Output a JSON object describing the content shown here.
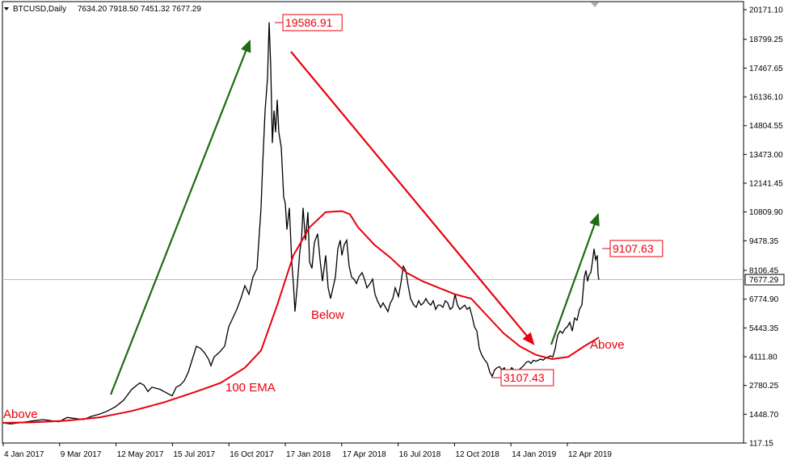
{
  "header": {
    "symbol": "BTCUSD,Daily",
    "ohlc": "7634.20 7918.50 7451.32 7677.29"
  },
  "chart_data": {
    "type": "line",
    "y_ticks": [
      "20171.10",
      "18799.25",
      "17467.65",
      "16136.10",
      "14804.55",
      "13473.00",
      "12141.45",
      "10809.90",
      "9478.35",
      "8106.45",
      "6774.90",
      "5443.35",
      "4111.80",
      "2780.25",
      "1448.70",
      "117.15"
    ],
    "x_ticks": [
      "4 Jan 2017",
      "9 Mar 2017",
      "12 May 2017",
      "15 Jul 2017",
      "16 Oct 2017",
      "17 Jan 2018",
      "17 Apr 2018",
      "16 Jul 2018",
      "12 Oct 2018",
      "14 Jan 2019",
      "12 Apr 2019"
    ],
    "current_price": "7677.29",
    "price_labels": [
      {
        "text": "19586.91",
        "value": 19586.91
      },
      {
        "text": "3107.43",
        "value": 3107.43
      },
      {
        "text": "9107.63",
        "value": 9107.63
      }
    ],
    "annotations": {
      "above_left": "Above",
      "ema": "100 EMA",
      "below": "Below",
      "above_right": "Above"
    },
    "colors": {
      "price": "#000000",
      "ema": "#e8000b",
      "up_arrow": "#1f6b13",
      "down_arrow": "#e8000b",
      "label_text": "#e8000b"
    },
    "price_path": [
      [
        0,
        1050
      ],
      [
        10,
        1000
      ],
      [
        20,
        1050
      ],
      [
        30,
        1100
      ],
      [
        40,
        1150
      ],
      [
        50,
        1200
      ],
      [
        60,
        1150
      ],
      [
        70,
        1100
      ],
      [
        75,
        1200
      ],
      [
        80,
        1300
      ],
      [
        90,
        1250
      ],
      [
        100,
        1200
      ],
      [
        110,
        1350
      ],
      [
        120,
        1450
      ],
      [
        130,
        1600
      ],
      [
        140,
        1800
      ],
      [
        150,
        2100
      ],
      [
        160,
        2600
      ],
      [
        170,
        2900
      ],
      [
        175,
        2800
      ],
      [
        180,
        2500
      ],
      [
        185,
        2700
      ],
      [
        195,
        2600
      ],
      [
        200,
        2500
      ],
      [
        205,
        2400
      ],
      [
        210,
        2300
      ],
      [
        215,
        2700
      ],
      [
        220,
        2800
      ],
      [
        225,
        3000
      ],
      [
        230,
        3400
      ],
      [
        235,
        4000
      ],
      [
        240,
        4600
      ],
      [
        245,
        4500
      ],
      [
        250,
        4300
      ],
      [
        255,
        4000
      ],
      [
        258,
        3700
      ],
      [
        262,
        4100
      ],
      [
        268,
        4300
      ],
      [
        275,
        4600
      ],
      [
        280,
        5500
      ],
      [
        285,
        5900
      ],
      [
        290,
        6300
      ],
      [
        295,
        6800
      ],
      [
        300,
        7400
      ],
      [
        305,
        7000
      ],
      [
        310,
        7800
      ],
      [
        315,
        8200
      ],
      [
        320,
        11000
      ],
      [
        322,
        13000
      ],
      [
        325,
        15500
      ],
      [
        328,
        17000
      ],
      [
        330,
        19586
      ],
      [
        332,
        17500
      ],
      [
        334,
        14000
      ],
      [
        336,
        15500
      ],
      [
        338,
        14500
      ],
      [
        340,
        16000
      ],
      [
        342,
        14500
      ],
      [
        345,
        13800
      ],
      [
        348,
        11500
      ],
      [
        350,
        11200
      ],
      [
        352,
        10000
      ],
      [
        355,
        11000
      ],
      [
        358,
        8500
      ],
      [
        360,
        7500
      ],
      [
        362,
        6200
      ],
      [
        365,
        7500
      ],
      [
        368,
        9000
      ],
      [
        370,
        9500
      ],
      [
        372,
        11000
      ],
      [
        375,
        9500
      ],
      [
        378,
        10800
      ],
      [
        380,
        8500
      ],
      [
        383,
        8200
      ],
      [
        386,
        9400
      ],
      [
        390,
        9800
      ],
      [
        393,
        8600
      ],
      [
        396,
        7600
      ],
      [
        400,
        8800
      ],
      [
        403,
        7300
      ],
      [
        406,
        6800
      ],
      [
        409,
        7300
      ],
      [
        412,
        7800
      ],
      [
        415,
        9100
      ],
      [
        418,
        9500
      ],
      [
        420,
        8800
      ],
      [
        423,
        9300
      ],
      [
        426,
        9500
      ],
      [
        429,
        8300
      ],
      [
        432,
        7800
      ],
      [
        435,
        7700
      ],
      [
        438,
        7500
      ],
      [
        441,
        7800
      ],
      [
        445,
        8000
      ],
      [
        448,
        7700
      ],
      [
        451,
        7300
      ],
      [
        455,
        7500
      ],
      [
        458,
        7700
      ],
      [
        461,
        7000
      ],
      [
        464,
        6700
      ],
      [
        468,
        6400
      ],
      [
        471,
        6600
      ],
      [
        474,
        6400
      ],
      [
        477,
        6200
      ],
      [
        480,
        6600
      ],
      [
        483,
        6800
      ],
      [
        486,
        7300
      ],
      [
        490,
        6900
      ],
      [
        493,
        7500
      ],
      [
        496,
        8300
      ],
      [
        499,
        8100
      ],
      [
        502,
        7400
      ],
      [
        505,
        6800
      ],
      [
        509,
        6500
      ],
      [
        512,
        6400
      ],
      [
        515,
        6700
      ],
      [
        518,
        6500
      ],
      [
        521,
        6600
      ],
      [
        524,
        6800
      ],
      [
        527,
        6600
      ],
      [
        530,
        6500
      ],
      [
        533,
        6700
      ],
      [
        536,
        6300
      ],
      [
        539,
        6500
      ],
      [
        542,
        6500
      ],
      [
        545,
        6400
      ],
      [
        548,
        6700
      ],
      [
        551,
        6600
      ],
      [
        554,
        6300
      ],
      [
        557,
        6400
      ],
      [
        560,
        7000
      ],
      [
        563,
        6500
      ],
      [
        566,
        6300
      ],
      [
        569,
        6400
      ],
      [
        572,
        6500
      ],
      [
        575,
        6300
      ],
      [
        578,
        6400
      ],
      [
        581,
        6000
      ],
      [
        584,
        5500
      ],
      [
        587,
        5300
      ],
      [
        590,
        4500
      ],
      [
        593,
        4200
      ],
      [
        596,
        4000
      ],
      [
        600,
        3800
      ],
      [
        603,
        3400
      ],
      [
        606,
        3200
      ],
      [
        609,
        3500
      ],
      [
        612,
        3600
      ],
      [
        615,
        3650
      ],
      [
        618,
        3500
      ],
      [
        621,
        3600
      ],
      [
        624,
        3300
      ],
      [
        627,
        3400
      ],
      [
        630,
        3600
      ],
      [
        633,
        3500
      ],
      [
        636,
        3450
      ],
      [
        639,
        3500
      ],
      [
        642,
        3600
      ],
      [
        645,
        3700
      ],
      [
        648,
        3850
      ],
      [
        651,
        3900
      ],
      [
        654,
        3800
      ],
      [
        657,
        3950
      ],
      [
        660,
        3900
      ],
      [
        663,
        3950
      ],
      [
        666,
        4000
      ],
      [
        669,
        3950
      ],
      [
        672,
        4050
      ],
      [
        675,
        4100
      ],
      [
        678,
        4150
      ],
      [
        681,
        4100
      ],
      [
        684,
        4500
      ],
      [
        687,
        5100
      ],
      [
        690,
        5300
      ],
      [
        693,
        5200
      ],
      [
        696,
        5400
      ],
      [
        699,
        5500
      ],
      [
        702,
        5700
      ],
      [
        705,
        5300
      ],
      [
        708,
        5900
      ],
      [
        711,
        5800
      ],
      [
        714,
        6300
      ],
      [
        717,
        6500
      ],
      [
        720,
        7800
      ],
      [
        722,
        8100
      ],
      [
        724,
        7600
      ],
      [
        726,
        7900
      ],
      [
        728,
        8000
      ],
      [
        730,
        8500
      ],
      [
        732,
        9107
      ],
      [
        734,
        8600
      ],
      [
        736,
        8800
      ],
      [
        737,
        7900
      ],
      [
        738,
        7677
      ]
    ],
    "ema_path": [
      [
        0,
        1050
      ],
      [
        40,
        1080
      ],
      [
        80,
        1150
      ],
      [
        120,
        1300
      ],
      [
        160,
        1600
      ],
      [
        200,
        2000
      ],
      [
        240,
        2500
      ],
      [
        270,
        2900
      ],
      [
        300,
        3600
      ],
      [
        320,
        4400
      ],
      [
        340,
        6500
      ],
      [
        360,
        8800
      ],
      [
        380,
        10100
      ],
      [
        400,
        10800
      ],
      [
        420,
        10850
      ],
      [
        430,
        10700
      ],
      [
        440,
        10100
      ],
      [
        460,
        9300
      ],
      [
        480,
        8700
      ],
      [
        500,
        8000
      ],
      [
        520,
        7600
      ],
      [
        540,
        7300
      ],
      [
        560,
        7000
      ],
      [
        580,
        6800
      ],
      [
        600,
        6000
      ],
      [
        620,
        5200
      ],
      [
        640,
        4600
      ],
      [
        660,
        4200
      ],
      [
        680,
        4000
      ],
      [
        700,
        4100
      ],
      [
        720,
        4600
      ],
      [
        738,
        5000
      ]
    ]
  }
}
